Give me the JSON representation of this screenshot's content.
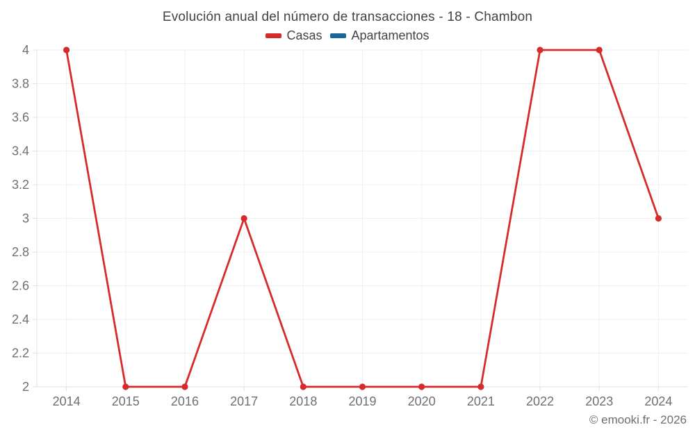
{
  "chart": {
    "footer": "© emooki.fr - 2026"
  },
  "chart_data": {
    "type": "line",
    "title": "Evolución anual del número de transacciones - 18 - Chambon",
    "categories": [
      "2014",
      "2015",
      "2016",
      "2017",
      "2018",
      "2019",
      "2020",
      "2021",
      "2022",
      "2023",
      "2024"
    ],
    "series": [
      {
        "name": "Casas",
        "color": "#d62b2b",
        "values": [
          4,
          2,
          2,
          3,
          2,
          2,
          2,
          2,
          4,
          4,
          3
        ]
      },
      {
        "name": "Apartamentos",
        "color": "#176896",
        "values": []
      }
    ],
    "xlabel": "",
    "ylabel": "",
    "ylim": [
      2,
      4
    ],
    "ytick_step": 0.2,
    "grid": true,
    "legend_position": "top",
    "colors": {
      "grid_line": "#efefef",
      "axis_line": "#e0e0e0",
      "tick_label": "#6f6f6f",
      "title_text": "#424242",
      "legend_text": "#424242",
      "footer_text": "#6e6e6e"
    }
  }
}
